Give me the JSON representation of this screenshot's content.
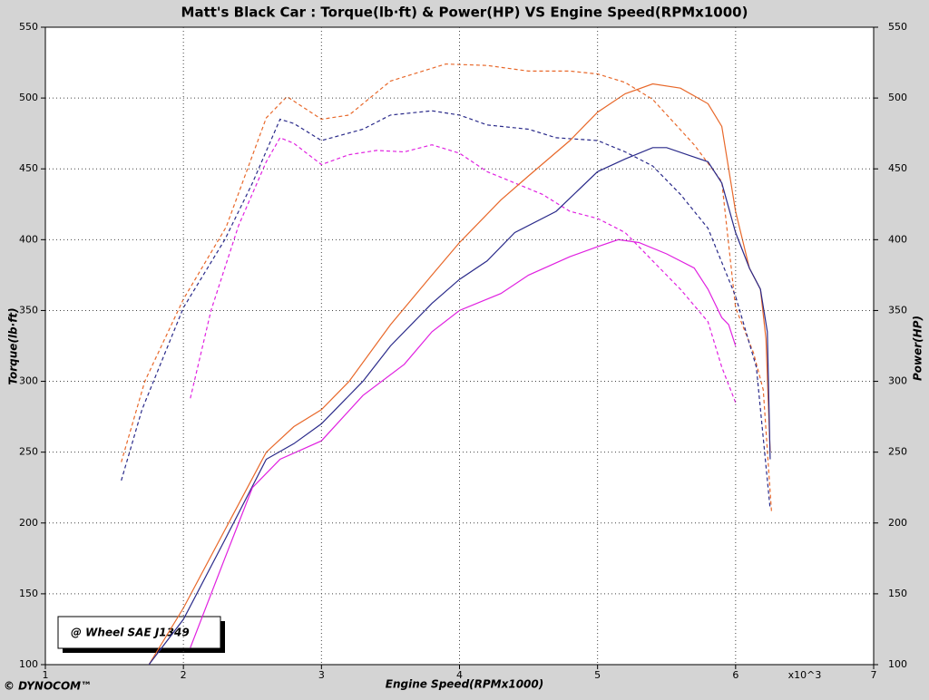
{
  "chart_data": {
    "type": "line",
    "title": "Matt's Black Car : Torque(lb·ft) & Power(HP) VS Engine Speed(RPMx1000)",
    "x_label": "Engine Speed(RPMx1000)",
    "x_unit_label": "x10^3",
    "y_label": "Torque(lb·ft)",
    "y2_label": "Power(HP)",
    "annotation": "@ Wheel SAE J1349",
    "footer": "© DYNOCOM™",
    "xlim": [
      1,
      7
    ],
    "xticks": [
      1,
      2,
      3,
      4,
      5,
      6,
      7
    ],
    "ylim": [
      100,
      550
    ],
    "yticks": [
      100,
      150,
      200,
      250,
      300,
      350,
      400,
      450,
      500,
      550
    ],
    "y2lim": [
      100,
      550
    ],
    "y2ticks": [
      100,
      150,
      200,
      250,
      300,
      350,
      400,
      450,
      500,
      550
    ],
    "grid": true,
    "series": [
      {
        "color": "#e8682a",
        "dashed": true,
        "x": [
          1.55,
          1.72,
          2.0,
          2.31,
          2.6,
          2.75,
          3.0,
          3.2,
          3.5,
          3.9,
          4.2,
          4.5,
          4.8,
          5.0,
          5.2,
          5.4,
          5.7,
          5.9,
          6.0,
          6.13,
          6.2,
          6.26
        ],
        "values": [
          243,
          300,
          358,
          409,
          486,
          501,
          485,
          488,
          512,
          524,
          523,
          519,
          519,
          517,
          511,
          499,
          467,
          441,
          352,
          320,
          294,
          208
        ]
      },
      {
        "color": "#2a2a8a",
        "dashed": true,
        "x": [
          1.55,
          1.7,
          2.0,
          2.3,
          2.5,
          2.7,
          2.8,
          3.0,
          3.3,
          3.5,
          3.8,
          4.0,
          4.2,
          4.5,
          4.7,
          5.0,
          5.2,
          5.4,
          5.6,
          5.8,
          6.0,
          6.15,
          6.25
        ],
        "values": [
          230,
          280,
          352,
          400,
          440,
          485,
          482,
          470,
          478,
          488,
          491,
          488,
          481,
          478,
          472,
          470,
          462,
          452,
          432,
          408,
          360,
          310,
          210
        ]
      },
      {
        "color": "#e020e0",
        "dashed": true,
        "x": [
          2.05,
          2.2,
          2.4,
          2.6,
          2.7,
          2.8,
          3.0,
          3.2,
          3.4,
          3.6,
          3.8,
          4.0,
          4.2,
          4.4,
          4.6,
          4.8,
          5.0,
          5.2,
          5.4,
          5.6,
          5.8,
          5.9,
          6.0
        ],
        "values": [
          288,
          350,
          410,
          455,
          472,
          468,
          453,
          460,
          463,
          462,
          467,
          461,
          448,
          440,
          432,
          420,
          415,
          405,
          385,
          365,
          342,
          310,
          285
        ]
      },
      {
        "color": "#e8682a",
        "dashed": false,
        "axis": "y2",
        "x": [
          1.75,
          2.0,
          2.3,
          2.6,
          2.8,
          3.0,
          3.2,
          3.5,
          3.8,
          4.0,
          4.3,
          4.5,
          4.8,
          5.0,
          5.2,
          5.4,
          5.6,
          5.8,
          5.9,
          6.0,
          6.1,
          6.18,
          6.22,
          6.25
        ],
        "values": [
          100,
          140,
          195,
          250,
          268,
          280,
          300,
          340,
          375,
          398,
          428,
          445,
          470,
          490,
          503,
          510,
          507,
          496,
          480,
          420,
          380,
          365,
          330,
          250
        ]
      },
      {
        "color": "#2a2a8a",
        "dashed": false,
        "axis": "y2",
        "x": [
          1.75,
          2.0,
          2.3,
          2.6,
          2.8,
          3.0,
          3.3,
          3.5,
          3.8,
          4.0,
          4.2,
          4.4,
          4.7,
          5.0,
          5.2,
          5.4,
          5.5,
          5.8,
          5.9,
          6.0,
          6.1,
          6.18,
          6.23,
          6.25
        ],
        "values": [
          100,
          132,
          188,
          245,
          256,
          270,
          300,
          325,
          355,
          372,
          385,
          405,
          420,
          448,
          457,
          465,
          465,
          455,
          440,
          405,
          380,
          365,
          335,
          245
        ]
      },
      {
        "color": "#e020e0",
        "dashed": false,
        "axis": "y2",
        "x": [
          2.05,
          2.3,
          2.5,
          2.7,
          3.0,
          3.3,
          3.6,
          3.8,
          4.0,
          4.3,
          4.5,
          4.8,
          5.0,
          5.15,
          5.3,
          5.5,
          5.7,
          5.8,
          5.9,
          5.95,
          6.0
        ],
        "values": [
          112,
          175,
          225,
          245,
          258,
          290,
          312,
          335,
          350,
          362,
          375,
          388,
          395,
          400,
          398,
          390,
          380,
          365,
          345,
          340,
          325
        ]
      }
    ]
  }
}
